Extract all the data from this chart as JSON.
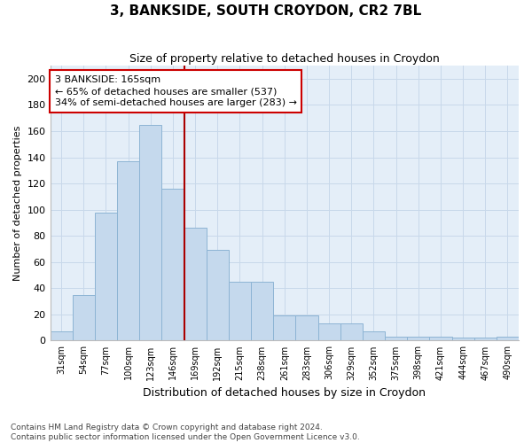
{
  "title": "3, BANKSIDE, SOUTH CROYDON, CR2 7BL",
  "subtitle": "Size of property relative to detached houses in Croydon",
  "xlabel": "Distribution of detached houses by size in Croydon",
  "ylabel": "Number of detached properties",
  "categories": [
    "31sqm",
    "54sqm",
    "77sqm",
    "100sqm",
    "123sqm",
    "146sqm",
    "169sqm",
    "192sqm",
    "215sqm",
    "238sqm",
    "261sqm",
    "283sqm",
    "306sqm",
    "329sqm",
    "352sqm",
    "375sqm",
    "398sqm",
    "421sqm",
    "444sqm",
    "467sqm",
    "490sqm"
  ],
  "values": [
    7,
    35,
    98,
    137,
    165,
    116,
    86,
    69,
    45,
    45,
    19,
    19,
    13,
    13,
    7,
    3,
    3,
    3,
    2,
    2,
    3
  ],
  "bar_color": "#c5d9ed",
  "bar_edge_color": "#8db4d4",
  "vline_x": 6.0,
  "vline_color": "#aa0000",
  "annotation_text": "3 BANKSIDE: 165sqm\n← 65% of detached houses are smaller (537)\n34% of semi-detached houses are larger (283) →",
  "annotation_box_color": "#ffffff",
  "annotation_box_edge": "#cc0000",
  "grid_color": "#c8d8ea",
  "bg_color": "#e4eef8",
  "footer": "Contains HM Land Registry data © Crown copyright and database right 2024.\nContains public sector information licensed under the Open Government Licence v3.0.",
  "ylim": [
    0,
    210
  ],
  "yticks": [
    0,
    20,
    40,
    60,
    80,
    100,
    120,
    140,
    160,
    180,
    200
  ],
  "title_fontsize": 11,
  "subtitle_fontsize": 9,
  "xlabel_fontsize": 9,
  "ylabel_fontsize": 8,
  "tick_fontsize": 8,
  "annotation_fontsize": 8
}
